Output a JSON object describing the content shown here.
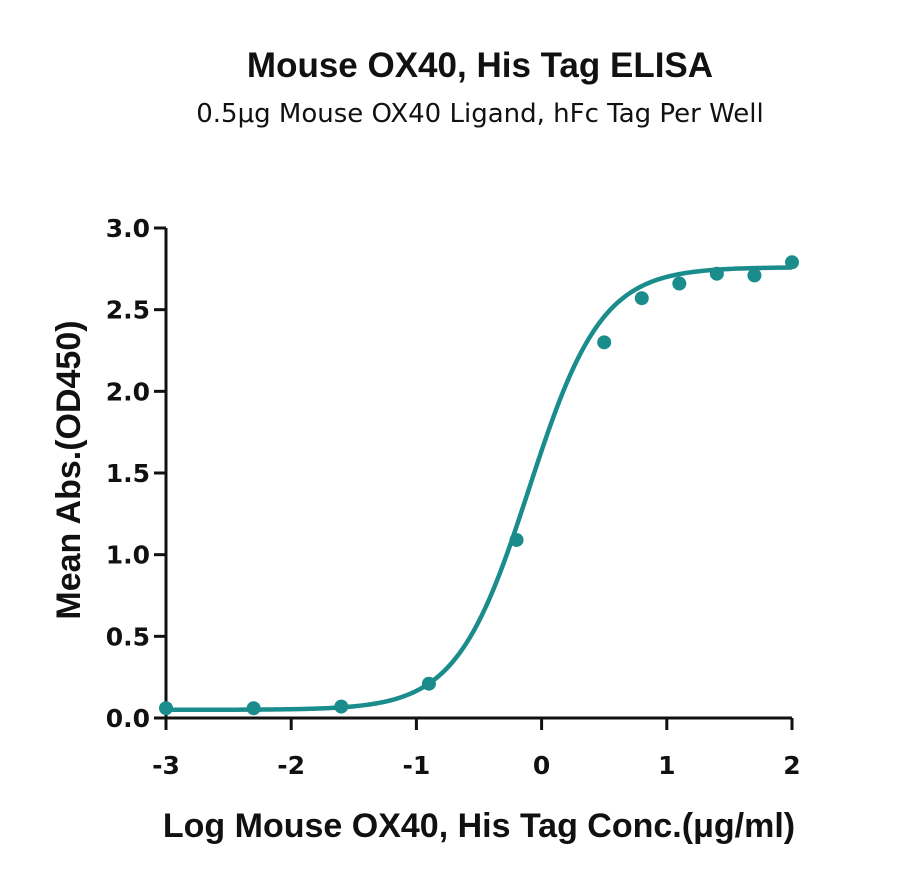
{
  "chart_data": {
    "type": "scatter",
    "title": "Mouse OX40, His Tag ELISA",
    "subtitle": "0.5μg Mouse OX40 Ligand, hFc Tag Per Well",
    "xlabel": "Log Mouse OX40, His Tag Conc.(μg/ml)",
    "ylabel": "Mean Abs.(OD450)",
    "xlim": [
      -3,
      2
    ],
    "ylim": [
      0,
      3
    ],
    "x_ticks": [
      -3,
      -2,
      -1,
      0,
      1,
      2
    ],
    "y_ticks": [
      0,
      0.5,
      1,
      1.5,
      2,
      2.5,
      3
    ],
    "x_tick_labels": [
      "-3",
      "-2",
      "-1",
      "0",
      "1",
      "2"
    ],
    "y_tick_labels": [
      "0.0",
      "0.5",
      "1.0",
      "1.5",
      "2.0",
      "2.5",
      "3.0"
    ],
    "color": "#1a8c8c",
    "grid": false,
    "series": [
      {
        "points": [
          {
            "x": -3.0,
            "y": 0.06
          },
          {
            "x": -2.3,
            "y": 0.06
          },
          {
            "x": -1.6,
            "y": 0.07
          },
          {
            "x": -0.9,
            "y": 0.21
          },
          {
            "x": -0.2,
            "y": 1.09
          },
          {
            "x": 0.5,
            "y": 2.3
          },
          {
            "x": 0.8,
            "y": 2.57
          },
          {
            "x": 1.1,
            "y": 2.66
          },
          {
            "x": 1.4,
            "y": 2.72
          },
          {
            "x": 1.7,
            "y": 2.71
          },
          {
            "x": 2.0,
            "y": 2.79
          }
        ],
        "fit": {
          "model": "4PL",
          "bottom": 0.05,
          "top": 2.76,
          "log_ec50": -0.1,
          "hill": 1.5
        }
      }
    ]
  }
}
